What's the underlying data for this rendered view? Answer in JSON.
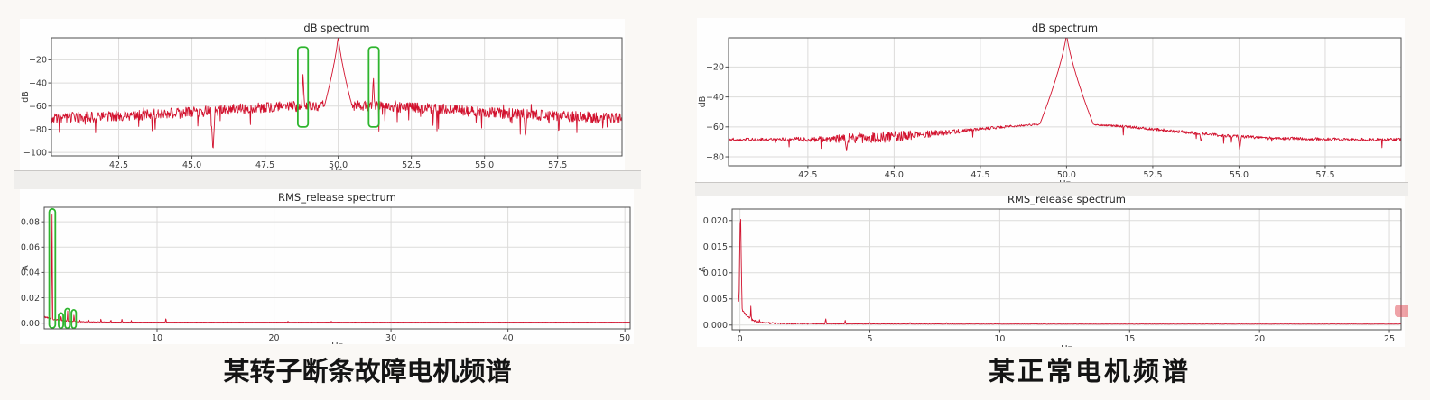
{
  "captions": {
    "left": "某转子断条故障电机频谱",
    "right": "某正常电机频谱"
  },
  "colors": {
    "line": "#d2122e",
    "annotation": "#2eb52e",
    "grid": "#dcdbda",
    "spine": "#4d4d4d",
    "tick_text": "#3a3a3a",
    "title_text": "#262626",
    "figure_bg": "#fefefe",
    "divider_bg": "#efeeec",
    "page_bg": "#faf8f5"
  },
  "chart_data": [
    {
      "id": "fault-db-spectrum",
      "panel": "left",
      "type": "line",
      "title": "dB spectrum",
      "xlabel": "Hz",
      "ylabel": "dB",
      "xlim": [
        40.2,
        59.7
      ],
      "ylim": [
        -103,
        -1
      ],
      "xticks": [
        42.5,
        45.0,
        47.5,
        50.0,
        52.5,
        55.0,
        57.5
      ],
      "yticks": [
        -20,
        -40,
        -60,
        -80,
        -100
      ],
      "xtick_decimals": 1,
      "ytick_decimals": 0,
      "grid": true,
      "line_color": "#d2122e",
      "key_features": [
        {
          "x": 50.0,
          "y": -2,
          "label": "supply-frequency peak (clipped at axes top)"
        },
        {
          "x": 48.8,
          "y": -29,
          "label": "lower fault sideband (green box)"
        },
        {
          "x": 51.2,
          "y": -31,
          "label": "upper fault sideband (green box)"
        },
        {
          "x": 45.7,
          "y": -100,
          "label": "deep notch"
        },
        {
          "label": "noisy floor",
          "y_range": [
            -78,
            -58
          ]
        }
      ],
      "generator": {
        "kind": "db",
        "seed": 3,
        "n": 1150,
        "x0": 40.2,
        "x1": 59.7,
        "center": 50,
        "floor_edge": -71,
        "floor_center": -59.5,
        "floor_sigma": 4.3,
        "noise_amp": 4.6,
        "spike_prob": 0.045,
        "spike_extra": 17,
        "peaks": [
          {
            "x": 50.0,
            "y": 2,
            "w": 0.18
          },
          {
            "x": 48.8,
            "y": -29,
            "w": 0.05
          },
          {
            "x": 51.2,
            "y": -31,
            "w": 0.05
          },
          {
            "x": 43.35,
            "y": -55,
            "w": 0.03
          },
          {
            "x": 46.6,
            "y": -53,
            "w": 0.03
          },
          {
            "x": 47.4,
            "y": -51,
            "w": 0.03
          },
          {
            "x": 48.33,
            "y": -49,
            "w": 0.03
          },
          {
            "x": 51.95,
            "y": -53,
            "w": 0.03
          },
          {
            "x": 53.6,
            "y": -51,
            "w": 0.03
          },
          {
            "x": 55.65,
            "y": -54,
            "w": 0.03
          },
          {
            "x": 56.6,
            "y": -53,
            "w": 0.03
          }
        ],
        "dips": [
          {
            "x": 45.72,
            "y": -100,
            "w": 0.07
          },
          {
            "x": 56.4,
            "y": -88,
            "w": 0.05
          }
        ]
      },
      "annotations": [
        {
          "shape": "rect",
          "color": "#2eb52e",
          "x0": 48.62,
          "x1": 48.97,
          "y0": -78,
          "y1": -9
        },
        {
          "shape": "rect",
          "color": "#2eb52e",
          "x0": 51.04,
          "x1": 51.39,
          "y0": -78,
          "y1": -9
        }
      ]
    },
    {
      "id": "fault-rms-spectrum",
      "panel": "left",
      "type": "line",
      "title": "RMS_release spectrum",
      "xlabel": "Hz",
      "ylabel": "A",
      "xlim": [
        0.35,
        50.45
      ],
      "ylim": [
        -0.0045,
        0.0915
      ],
      "xticks": [
        10,
        20,
        30,
        40,
        50
      ],
      "yticks": [
        0.0,
        0.02,
        0.04,
        0.06,
        0.08
      ],
      "xtick_decimals": 0,
      "ytick_decimals": 2,
      "grid": true,
      "line_color": "#d2122e",
      "key_features": [
        {
          "x": 1.0,
          "y": 0.0885,
          "label": "dominant low-frequency component (green box)"
        },
        {
          "x": 1.8,
          "y": 0.0075,
          "label": "harmonic (green box)"
        },
        {
          "x": 2.35,
          "y": 0.0105,
          "label": "harmonic (green box)"
        },
        {
          "x": 2.9,
          "y": 0.0085,
          "label": "harmonic (green box)"
        },
        {
          "x": 10.75,
          "y": 0.0042,
          "label": "minor spike"
        },
        {
          "label": "baseline",
          "y_range": [
            0.0005,
            0.001
          ]
        }
      ],
      "generator": {
        "kind": "rms",
        "seed": 5,
        "n": 1500,
        "x0": 0.35,
        "x1": 50.45,
        "base0": 0.0038,
        "tau": 1.0,
        "base_min": 0.0007,
        "noise0": 0.0013,
        "ntau": 2.8,
        "nmin": 0.00012,
        "peaks": [
          {
            "x": 1.02,
            "y": 0.0885,
            "w": 0.06
          },
          {
            "x": 0.55,
            "y": 0.004,
            "w": 0.05
          },
          {
            "x": 1.5,
            "y": 0.0045,
            "w": 0.04
          },
          {
            "x": 1.8,
            "y": 0.0075,
            "w": 0.045
          },
          {
            "x": 2.35,
            "y": 0.0105,
            "w": 0.045
          },
          {
            "x": 2.9,
            "y": 0.0085,
            "w": 0.045
          },
          {
            "x": 3.4,
            "y": 0.003,
            "w": 0.05
          },
          {
            "x": 4.15,
            "y": 0.0028,
            "w": 0.05
          },
          {
            "x": 5.2,
            "y": 0.0035,
            "w": 0.06
          },
          {
            "x": 6.05,
            "y": 0.0028,
            "w": 0.06
          },
          {
            "x": 7.0,
            "y": 0.0032,
            "w": 0.07
          },
          {
            "x": 7.8,
            "y": 0.0022,
            "w": 0.06
          },
          {
            "x": 10.75,
            "y": 0.0042,
            "w": 0.06
          },
          {
            "x": 16.0,
            "y": 0.0013,
            "w": 0.07
          },
          {
            "x": 21.2,
            "y": 0.0018,
            "w": 0.06
          },
          {
            "x": 24.9,
            "y": 0.0016,
            "w": 0.06
          },
          {
            "x": 28.5,
            "y": 0.001,
            "w": 0.06
          }
        ]
      },
      "annotations": [
        {
          "shape": "rect",
          "color": "#2eb52e",
          "x0": 0.78,
          "x1": 1.3,
          "y0": -0.0038,
          "y1": 0.0902
        },
        {
          "shape": "rect",
          "color": "#2eb52e",
          "x0": 1.58,
          "x1": 1.98,
          "y0": -0.004,
          "y1": 0.008
        },
        {
          "shape": "rect",
          "color": "#2eb52e",
          "x0": 2.13,
          "x1": 2.53,
          "y0": -0.004,
          "y1": 0.0115
        },
        {
          "shape": "rect",
          "color": "#2eb52e",
          "x0": 2.68,
          "x1": 3.08,
          "y0": -0.004,
          "y1": 0.0105
        }
      ]
    },
    {
      "id": "normal-db-spectrum",
      "panel": "right",
      "type": "line",
      "title": "dB spectrum",
      "xlabel": "Hz",
      "ylabel": "dB",
      "xlim": [
        40.2,
        59.7
      ],
      "ylim": [
        -86,
        -0.5
      ],
      "xticks": [
        42.5,
        45.0,
        47.5,
        50.0,
        52.5,
        55.0,
        57.5
      ],
      "yticks": [
        -20,
        -40,
        -60,
        -80
      ],
      "xtick_decimals": 1,
      "ytick_decimals": 0,
      "grid": true,
      "line_color": "#d2122e",
      "key_features": [
        {
          "x": 50.0,
          "y": -1,
          "label": "supply-frequency peak, no sidebands (clipped at axes top)"
        },
        {
          "x": 43.6,
          "y": -76,
          "label": "downward notch"
        },
        {
          "x": 55.0,
          "y": -75,
          "label": "downward notch"
        },
        {
          "label": "smooth floor",
          "y_range": [
            -68,
            -58
          ]
        }
      ],
      "generator": {
        "kind": "db",
        "seed": 12,
        "n": 1300,
        "x0": 40.2,
        "x1": 59.7,
        "center": 50,
        "floor_edge": -68.5,
        "floor_center": -58,
        "floor_sigma": 2.8,
        "noise_amp": 1.0,
        "spike_prob": 0.01,
        "spike_extra": 8,
        "noise_bump": {
          "x": 44.6,
          "w": 1.2,
          "gain": 2.8
        },
        "noise_center_scale": {
          "scale": 0.45,
          "sigma": 1.3
        },
        "peaks": [
          {
            "x": 50.0,
            "y": 3,
            "w": 0.3
          }
        ],
        "dips": [
          {
            "x": 43.62,
            "y": -76,
            "w": 0.05
          },
          {
            "x": 55.02,
            "y": -75,
            "w": 0.05
          },
          {
            "x": 53.9,
            "y": -70,
            "w": 0.04
          }
        ]
      },
      "annotations": []
    },
    {
      "id": "normal-rms-spectrum",
      "panel": "right",
      "type": "line",
      "title": "RMS_release spectrum",
      "xlabel": "Hz",
      "ylabel": "A",
      "xlim": [
        -0.3,
        25.45
      ],
      "ylim": [
        -0.0009,
        0.0222
      ],
      "xticks": [
        0,
        5,
        10,
        15,
        20,
        25
      ],
      "yticks": [
        0.0,
        0.005,
        0.01,
        0.015,
        0.02
      ],
      "xtick_decimals": 0,
      "ytick_decimals": 3,
      "grid": true,
      "line_color": "#d2122e",
      "key_features": [
        {
          "x": 0.0,
          "y": 0.022,
          "label": "DC / very-low-frequency peak (clipped at axes top)"
        },
        {
          "x": 0.42,
          "y": 0.0037,
          "label": "small spike"
        },
        {
          "x": 3.3,
          "y": 0.0013,
          "label": "small spike"
        },
        {
          "label": "baseline decays to",
          "y_range": [
            0.0001,
            0.0004
          ]
        }
      ],
      "generator": {
        "kind": "rms",
        "seed": 9,
        "n": 1300,
        "x0": -0.05,
        "x1": 25.45,
        "base0": 0.0042,
        "tau": 0.28,
        "base_min": 0.00016,
        "noise0": 0.00045,
        "ntau": 2.2,
        "nmin": 5e-05,
        "peaks": [
          {
            "x": 0.02,
            "y": 0.023,
            "w": 0.07
          },
          {
            "x": 0.42,
            "y": 0.0037,
            "w": 0.035
          },
          {
            "x": 0.75,
            "y": 0.0012,
            "w": 0.03
          },
          {
            "x": 1.1,
            "y": 0.0007,
            "w": 0.03
          },
          {
            "x": 3.3,
            "y": 0.0013,
            "w": 0.04
          },
          {
            "x": 4.05,
            "y": 0.0009,
            "w": 0.04
          },
          {
            "x": 5.0,
            "y": 0.0006,
            "w": 0.04
          },
          {
            "x": 6.55,
            "y": 0.0006,
            "w": 0.04
          },
          {
            "x": 7.95,
            "y": 0.0005,
            "w": 0.04
          }
        ]
      },
      "annotations": []
    }
  ]
}
